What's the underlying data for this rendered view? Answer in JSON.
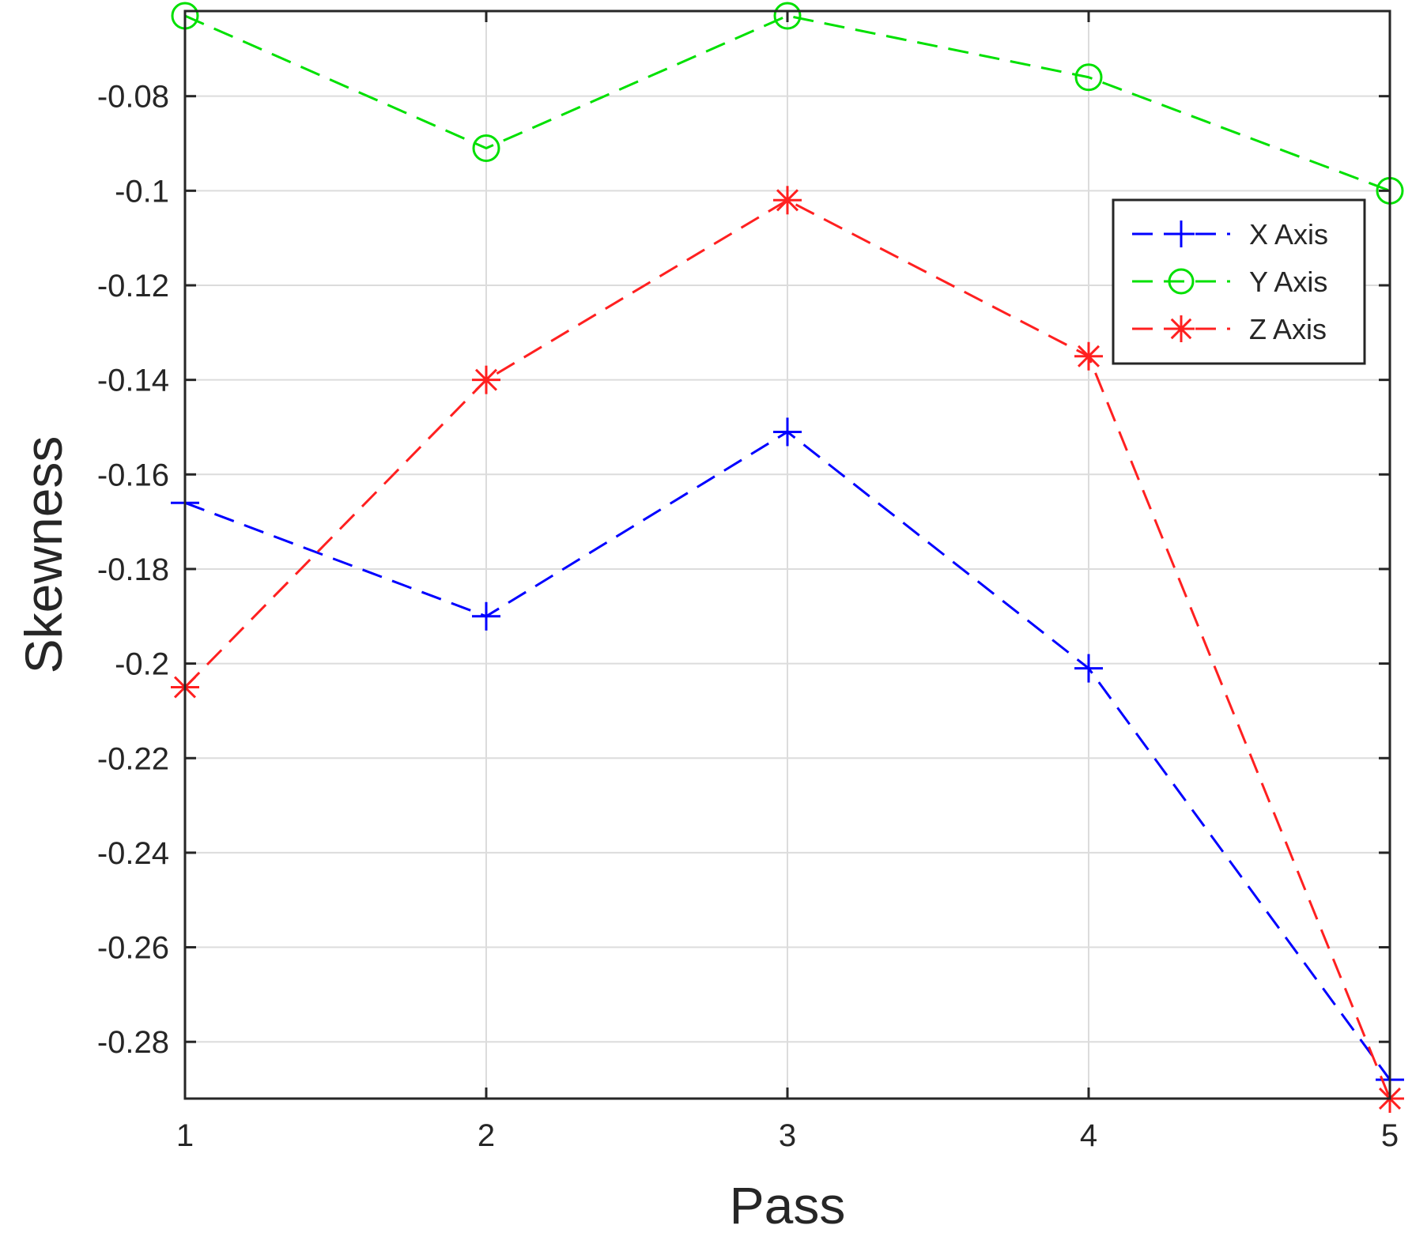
{
  "chart_data": {
    "type": "line",
    "title": "",
    "xlabel": "Pass",
    "ylabel": "Skewness",
    "xlim": [
      1,
      5
    ],
    "ylim": [
      -0.292,
      -0.062
    ],
    "x": [
      1,
      2,
      3,
      4,
      5
    ],
    "x_ticks": [
      "1",
      "2",
      "3",
      "4",
      "5"
    ],
    "y_tick_values": [
      -0.08,
      -0.1,
      -0.12,
      -0.14,
      -0.16,
      -0.18,
      -0.2,
      -0.22,
      -0.24,
      -0.26,
      -0.28
    ],
    "y_ticks": [
      "-0.08",
      "-0.1",
      "-0.12",
      "-0.14",
      "-0.16",
      "-0.18",
      "-0.2",
      "-0.22",
      "-0.24",
      "-0.26",
      "-0.28"
    ],
    "grid": true,
    "legend_position": "top-right",
    "series": [
      {
        "name": "X Axis",
        "values": [
          -0.166,
          -0.19,
          -0.151,
          -0.201,
          -0.288
        ],
        "color": "#0000ff",
        "marker": "plus"
      },
      {
        "name": "Y Axis",
        "values": [
          -0.063,
          -0.091,
          -0.063,
          -0.076,
          -0.1
        ],
        "color": "#00e000",
        "marker": "circle"
      },
      {
        "name": "Z Axis",
        "values": [
          -0.205,
          -0.14,
          -0.102,
          -0.135,
          -0.292
        ],
        "color": "#ff2020",
        "marker": "asterisk"
      }
    ]
  }
}
